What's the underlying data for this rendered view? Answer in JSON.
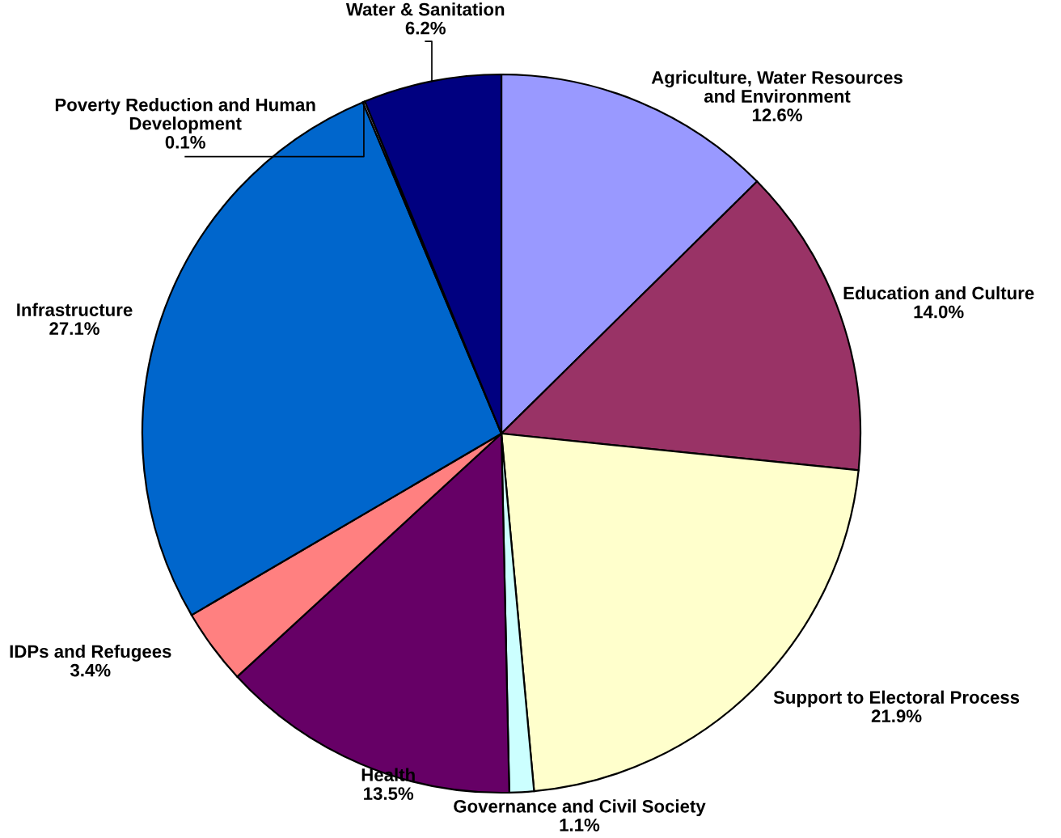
{
  "chart_data": {
    "type": "pie",
    "categories": [
      "Agriculture, Water Resources\nand Environment",
      "Education and Culture",
      "Support to Electoral Process",
      "Governance and Civil Society",
      "Health",
      "IDPs and Refugees",
      "Infrastructure",
      "Poverty Reduction and Human\nDevelopment",
      "Water & Sanitation"
    ],
    "values": [
      12.6,
      14.0,
      21.9,
      1.1,
      13.5,
      3.4,
      27.1,
      0.1,
      6.2
    ],
    "colors": [
      "#9999ff",
      "#993366",
      "#ffffcc",
      "#ccffff",
      "#660066",
      "#ff8080",
      "#0066cc",
      "#ccccff",
      "#000080"
    ],
    "value_labels": [
      "12.6%",
      "14.0%",
      "21.9%",
      "1.1%",
      "13.5%",
      "3.4%",
      "27.1%",
      "0.1%",
      "6.2%"
    ]
  }
}
